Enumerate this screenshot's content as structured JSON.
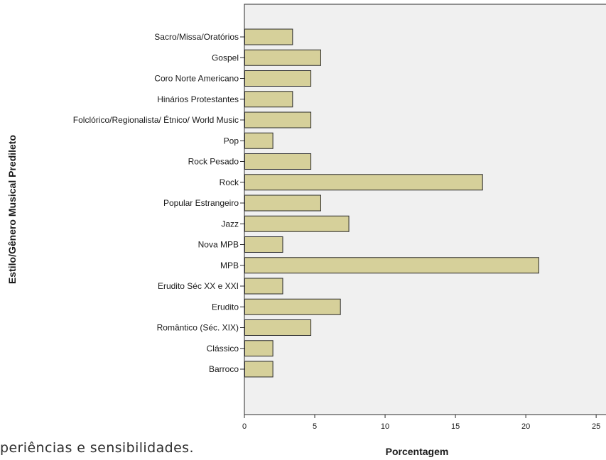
{
  "body_text": "periências e sensibilidades.",
  "chart_data": {
    "type": "bar",
    "orientation": "horizontal",
    "categories": [
      "Sacro/Missa/Oratórios",
      "Gospel",
      "Coro Norte Americano",
      "Hinários Protestantes",
      "Folclórico/Regionalista/ Étnico/ World Music",
      "Pop",
      "Rock Pesado",
      "Rock",
      "Popular Estrangeiro",
      "Jazz",
      "Nova MPB",
      "MPB",
      "Erudito Séc XX e XXI",
      "Erudito",
      "Romântico (Séc. XIX)",
      "Clássico",
      "Barroco"
    ],
    "values": [
      3.4,
      5.4,
      4.7,
      3.4,
      4.7,
      2.0,
      4.7,
      16.9,
      5.4,
      7.4,
      2.7,
      20.9,
      2.7,
      6.8,
      4.7,
      2.0,
      2.0
    ],
    "xlabel": "Porcentagem",
    "ylabel": "Estilo/Gênero Musical Predileto",
    "xlim": [
      0,
      25.7
    ],
    "xticks": [
      0,
      5,
      10,
      15,
      20,
      25
    ],
    "grid": false,
    "legend": "none",
    "colors": {
      "bar_fill": "#d6d09a",
      "bar_stroke": "#2b2b2b",
      "plot_bg": "#f0f0f0"
    }
  }
}
